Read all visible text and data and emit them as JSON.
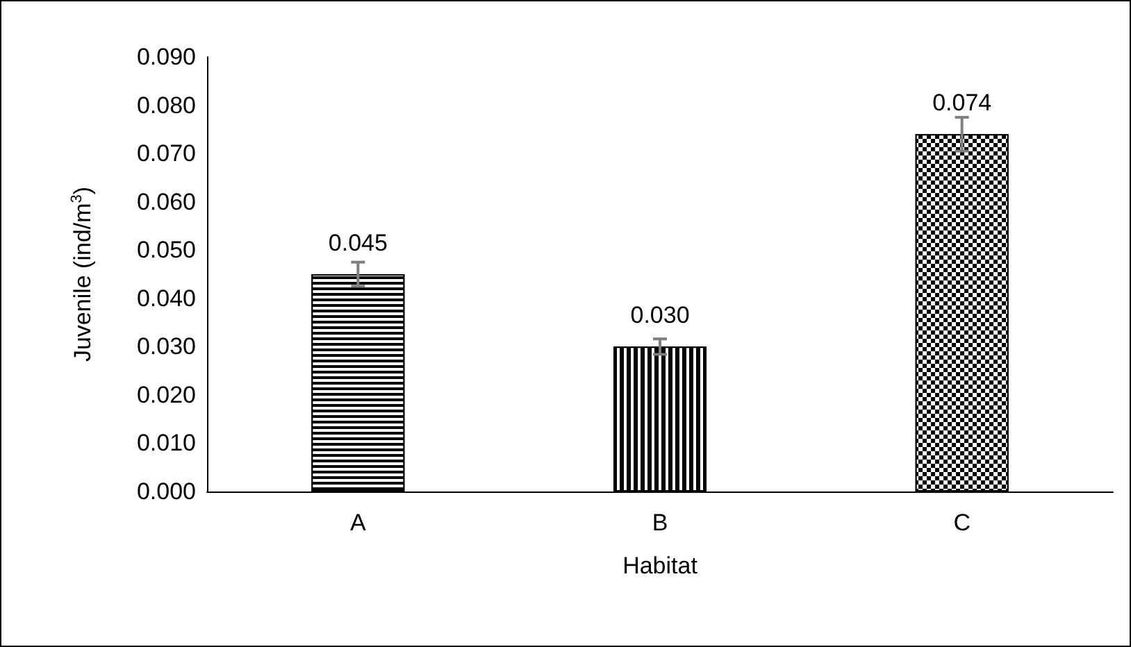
{
  "chart_data": {
    "type": "bar",
    "xlabel": "Habitat",
    "ylabel": "Juvenile (ind/m$^{3}$)",
    "categories": [
      "A",
      "B",
      "C"
    ],
    "values": [
      0.045,
      0.03,
      0.074
    ],
    "value_labels": [
      "0.045",
      "0.030",
      "0.074"
    ],
    "colors": [
      "#000000",
      "#000000",
      "#000000"
    ],
    "errors": [
      0.0025,
      0.0016,
      0.0035
    ],
    "ylim": [
      0,
      0.09
    ],
    "yticks": [
      {
        "value": 0,
        "label": "0.000"
      },
      {
        "value": 0.01,
        "label": "0.010"
      },
      {
        "value": 0.02,
        "label": "0.020"
      },
      {
        "value": 0.03,
        "label": "0.030"
      },
      {
        "value": 0.04,
        "label": "0.040"
      },
      {
        "value": 0.05,
        "label": "0.050"
      },
      {
        "value": 0.06,
        "label": "0.060"
      },
      {
        "value": 0.07,
        "label": "0.070"
      },
      {
        "value": 0.08,
        "label": "0.080"
      },
      {
        "value": 0.09,
        "label": "0.090"
      }
    ],
    "grid": false
  }
}
